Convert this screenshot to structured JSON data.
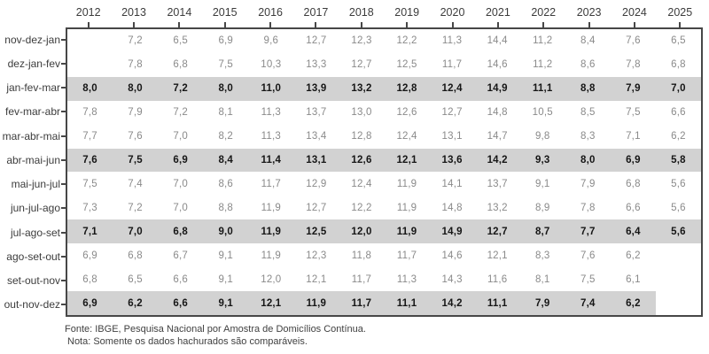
{
  "chart_data": {
    "type": "table",
    "columns": [
      "2012",
      "2013",
      "2014",
      "2015",
      "2016",
      "2017",
      "2018",
      "2019",
      "2020",
      "2021",
      "2022",
      "2023",
      "2024",
      "2025"
    ],
    "rows": [
      {
        "label": "nov-dez-jan",
        "highlighted": false,
        "highlight_span": 0,
        "values": [
          "",
          "7,2",
          "6,5",
          "6,9",
          "9,6",
          "12,7",
          "12,3",
          "12,2",
          "11,3",
          "14,4",
          "11,2",
          "8,4",
          "7,6",
          "6,5"
        ]
      },
      {
        "label": "dez-jan-fev",
        "highlighted": false,
        "highlight_span": 0,
        "values": [
          "",
          "7,8",
          "6,8",
          "7,5",
          "10,3",
          "13,3",
          "12,7",
          "12,5",
          "11,7",
          "14,6",
          "11,2",
          "8,6",
          "7,8",
          "6,8"
        ]
      },
      {
        "label": "jan-fev-mar",
        "highlighted": true,
        "highlight_span": 14,
        "values": [
          "8,0",
          "8,0",
          "7,2",
          "8,0",
          "11,0",
          "13,9",
          "13,2",
          "12,8",
          "12,4",
          "14,9",
          "11,1",
          "8,8",
          "7,9",
          "7,0"
        ]
      },
      {
        "label": "fev-mar-abr",
        "highlighted": false,
        "highlight_span": 0,
        "values": [
          "7,8",
          "7,9",
          "7,2",
          "8,1",
          "11,3",
          "13,7",
          "13,0",
          "12,6",
          "12,7",
          "14,8",
          "10,5",
          "8,5",
          "7,5",
          "6,6"
        ]
      },
      {
        "label": "mar-abr-mai",
        "highlighted": false,
        "highlight_span": 0,
        "values": [
          "7,7",
          "7,6",
          "7,0",
          "8,2",
          "11,3",
          "13,4",
          "12,8",
          "12,4",
          "13,1",
          "14,7",
          "9,8",
          "8,3",
          "7,1",
          "6,2"
        ]
      },
      {
        "label": "abr-mai-jun",
        "highlighted": true,
        "highlight_span": 14,
        "values": [
          "7,6",
          "7,5",
          "6,9",
          "8,4",
          "11,4",
          "13,1",
          "12,6",
          "12,1",
          "13,6",
          "14,2",
          "9,3",
          "8,0",
          "6,9",
          "5,8"
        ]
      },
      {
        "label": "mai-jun-jul",
        "highlighted": false,
        "highlight_span": 0,
        "values": [
          "7,5",
          "7,4",
          "7,0",
          "8,6",
          "11,7",
          "12,9",
          "12,4",
          "11,9",
          "14,1",
          "13,7",
          "9,1",
          "7,9",
          "6,8",
          "5,6"
        ]
      },
      {
        "label": "jun-jul-ago",
        "highlighted": false,
        "highlight_span": 0,
        "values": [
          "7,3",
          "7,2",
          "7,0",
          "8,8",
          "11,9",
          "12,7",
          "12,2",
          "11,9",
          "14,8",
          "13,2",
          "8,9",
          "7,8",
          "6,6",
          "5,6"
        ]
      },
      {
        "label": "jul-ago-set",
        "highlighted": true,
        "highlight_span": 14,
        "values": [
          "7,1",
          "7,0",
          "6,8",
          "9,0",
          "11,9",
          "12,5",
          "12,0",
          "11,9",
          "14,9",
          "12,7",
          "8,7",
          "7,7",
          "6,4",
          "5,6"
        ]
      },
      {
        "label": "ago-set-out",
        "highlighted": false,
        "highlight_span": 0,
        "values": [
          "6,9",
          "6,8",
          "6,7",
          "9,1",
          "11,9",
          "12,3",
          "11,8",
          "11,7",
          "14,6",
          "12,1",
          "8,3",
          "7,6",
          "6,2",
          ""
        ]
      },
      {
        "label": "set-out-nov",
        "highlighted": false,
        "highlight_span": 0,
        "values": [
          "6,8",
          "6,5",
          "6,6",
          "9,1",
          "12,0",
          "12,1",
          "11,7",
          "11,3",
          "14,3",
          "11,6",
          "8,1",
          "7,5",
          "6,1",
          ""
        ]
      },
      {
        "label": "out-nov-dez",
        "highlighted": true,
        "highlight_span": 13,
        "values": [
          "6,9",
          "6,2",
          "6,6",
          "9,1",
          "12,1",
          "11,9",
          "11,7",
          "11,1",
          "14,2",
          "11,1",
          "7,9",
          "7,4",
          "6,2",
          ""
        ]
      }
    ]
  },
  "footer": {
    "source": "Fonte: IBGE, Pesquisa Nacional por Amostra de Domicílios Contínua.",
    "note": "Nota: Somente os dados hachurados são comparáveis."
  },
  "colors": {
    "highlight_band": "#d2d2d2",
    "border": "#474747",
    "value_text": "#8a8a8a",
    "value_text_highlight": "#161616",
    "label_text": "#3c3c3c",
    "footer_text": "#404040"
  }
}
